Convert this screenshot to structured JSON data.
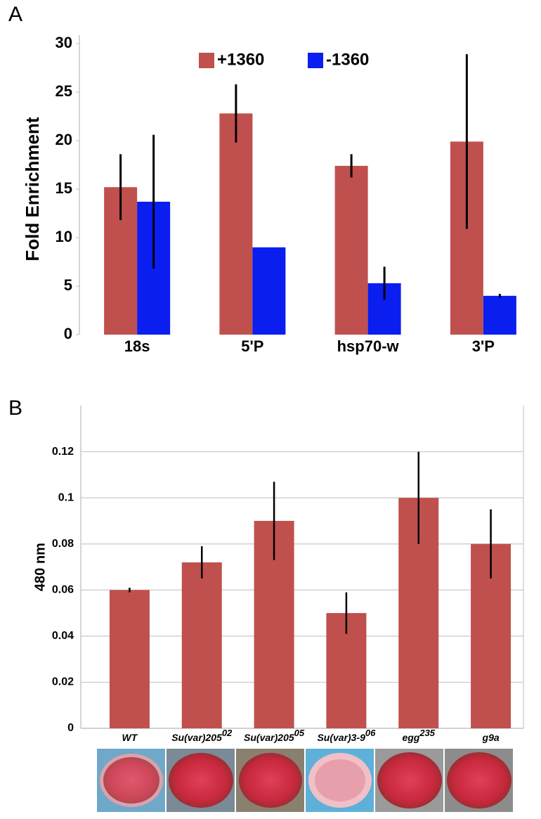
{
  "chart_data": [
    {
      "type": "bar",
      "panel": "A",
      "y_label": "Fold Enrichment",
      "categories": [
        "18s",
        "5'P",
        "hsp70-w",
        "3'P"
      ],
      "series": [
        {
          "name": "+1360",
          "color": "#c0504d",
          "values": [
            15.2,
            22.8,
            17.4,
            19.9
          ],
          "errors": [
            3.4,
            3.0,
            1.2,
            9.0
          ]
        },
        {
          "name": "-1360",
          "color": "#0a1ef0",
          "values": [
            13.7,
            9.0,
            5.3,
            4.0
          ],
          "errors": [
            6.9,
            null,
            1.7,
            0.2
          ]
        }
      ],
      "ylim": [
        0,
        30
      ],
      "yticks": [
        0,
        5,
        10,
        15,
        20,
        25,
        30
      ],
      "grid": false,
      "legend": "top"
    },
    {
      "type": "bar",
      "panel": "B",
      "y_label": "480 nm",
      "categories": [
        "WT",
        "Su(var)205",
        "Su(var)205",
        "Su(var)3-9",
        "egg",
        "g9a"
      ],
      "category_superscripts": [
        null,
        "02",
        "05",
        "06",
        "235",
        null
      ],
      "series": [
        {
          "name": null,
          "color": "#c0504d",
          "values": [
            0.06,
            0.072,
            0.09,
            0.05,
            0.1,
            0.08
          ],
          "errors": [
            0.001,
            0.007,
            0.017,
            0.009,
            0.02,
            0.015
          ]
        }
      ],
      "ylim": [
        0,
        0.14
      ],
      "yticks": [
        0,
        0.02,
        0.04,
        0.06,
        0.08,
        0.1,
        0.12
      ],
      "grid": true
    }
  ]
}
